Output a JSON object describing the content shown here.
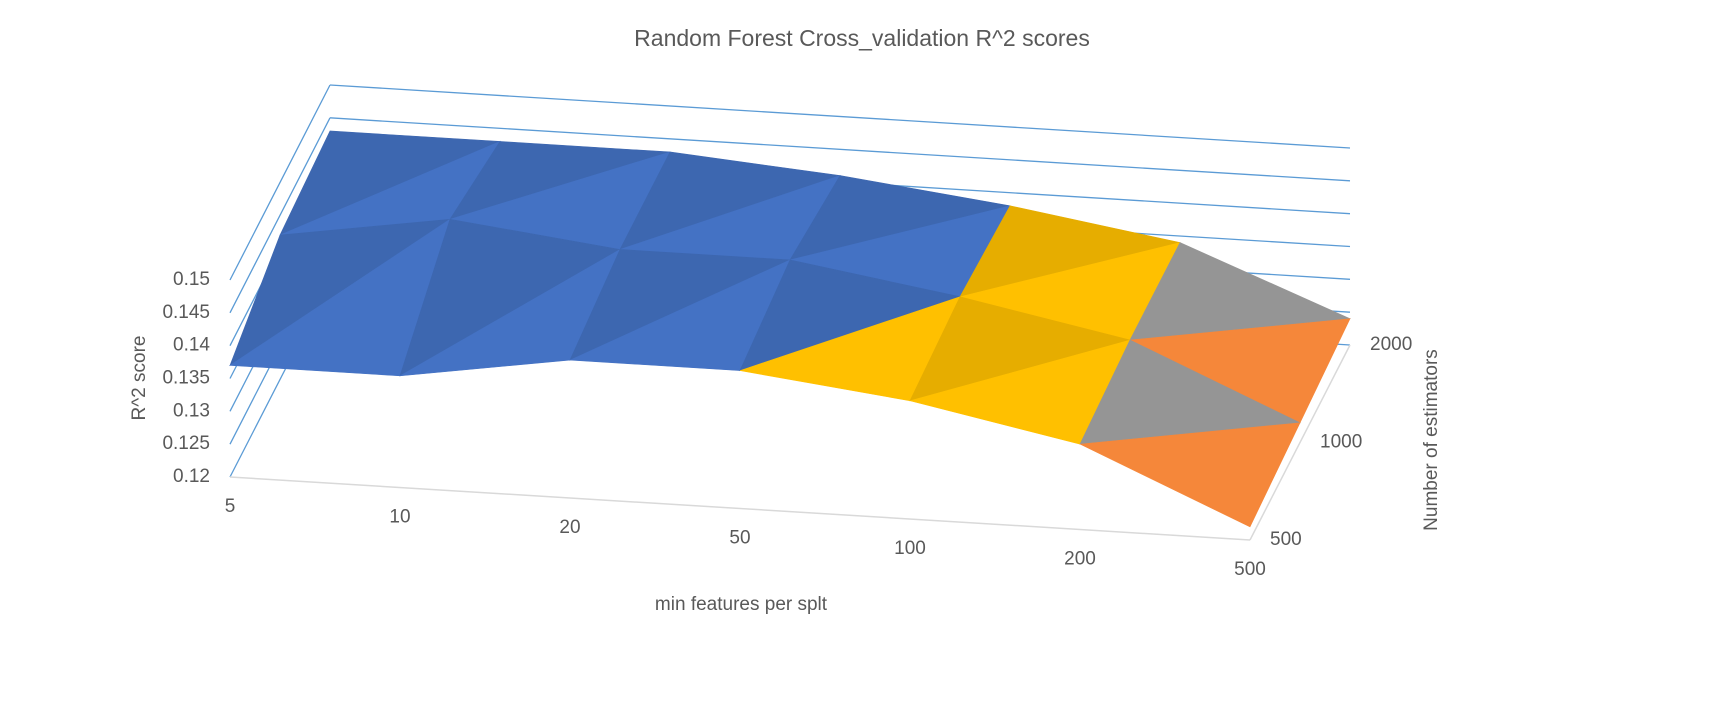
{
  "chart_data": {
    "type": "surface3d",
    "title": "Random Forest Cross_validation R^2 scores",
    "x_label": "min features per splt",
    "y_label": "R^2 score",
    "z_label": "Number of estimators",
    "categories": [
      "5",
      "10",
      "20",
      "50",
      "100",
      "200",
      "500"
    ],
    "depth_categories": [
      "500",
      "1000",
      "2000"
    ],
    "series": [
      {
        "name": "500",
        "values": [
          0.137,
          0.137,
          0.141,
          0.141,
          0.138,
          0.133,
          0.122
        ]
      },
      {
        "name": "1000",
        "values": [
          0.142,
          0.146,
          0.143,
          0.143,
          0.139,
          0.134,
          0.123
        ]
      },
      {
        "name": "2000",
        "values": [
          0.143,
          0.143,
          0.143,
          0.141,
          0.138,
          0.134,
          0.124
        ]
      }
    ],
    "ylim": [
      0.12,
      0.15
    ],
    "yticks": [
      0.12,
      0.125,
      0.13,
      0.135,
      0.14,
      0.145,
      0.15
    ],
    "band_colors": [
      "#5fa8e8",
      "#f5873a",
      "#a5a5a5",
      "#ffc000",
      "#4472c4",
      "#70ad47"
    ],
    "wall_color": "#5b9bd5",
    "floor_color": "#d9d9d9"
  }
}
